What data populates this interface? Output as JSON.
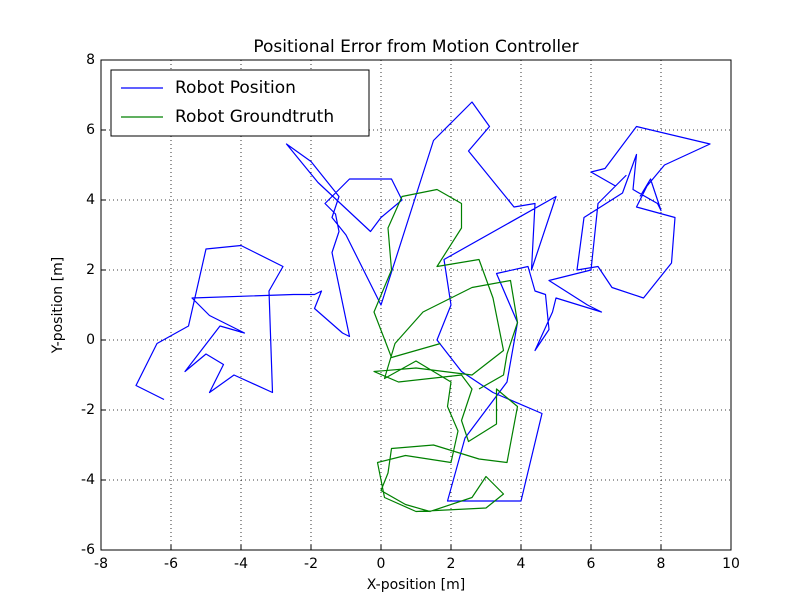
{
  "chart_data": {
    "type": "line",
    "title": "Positional Error from Motion Controller",
    "x_label": "X-position [m]",
    "y_label": "Y-position [m]",
    "xlim": [
      -8,
      10
    ],
    "xticks": [
      -8,
      -6,
      -4,
      -2,
      0,
      2,
      4,
      6,
      8,
      10
    ],
    "ylim": [
      -6,
      8
    ],
    "yticks": [
      -6,
      -4,
      -2,
      0,
      2,
      4,
      6,
      8
    ],
    "grid": true,
    "legend": "upper left",
    "series": [
      {
        "name": "Robot Position",
        "color": "#0000ff",
        "x": [
          -6.2,
          -7.0,
          -6.4,
          -5.5,
          -5.0,
          -4.0,
          -2.8,
          -3.2,
          -3.1,
          -4.2,
          -4.9,
          -4.5,
          -5.0,
          -5.6,
          -4.6,
          -3.9,
          -4.9,
          -5.4,
          -2.5,
          -1.9,
          -1.7,
          -1.9,
          -1.1,
          -0.9,
          -1.4,
          -1.2,
          -1.3,
          -1.6,
          -1.4,
          -0.9,
          0.3,
          0.6,
          0.0,
          -0.3,
          -1.8,
          -2.7,
          -2.0,
          -1.2,
          -1.4,
          -1.0,
          0.0,
          1.5,
          2.6,
          3.1,
          2.5,
          3.8,
          4.4,
          4.3,
          5.0,
          1.8,
          2.0,
          1.6,
          2.3,
          3.2,
          4.6,
          4.0,
          1.9,
          2.4,
          3.6,
          3.9,
          3.3,
          4.2,
          4.4,
          4.7,
          4.8,
          4.4,
          4.9,
          5.0,
          6.3,
          5.9,
          4.8,
          6.0,
          6.2,
          7.0,
          6.7,
          6.0,
          6.4,
          7.3,
          9.4,
          8.1,
          7.6,
          7.3,
          8.4,
          8.3,
          7.5,
          6.6,
          6.2,
          5.6,
          5.8,
          6.9,
          7.3,
          7.2,
          7.9,
          8.0,
          7.7,
          7.4
        ],
        "values": [
          -1.7,
          -1.3,
          -0.1,
          0.4,
          2.6,
          2.7,
          2.1,
          1.4,
          -1.5,
          -1.0,
          -1.5,
          -0.7,
          -0.4,
          -0.9,
          0.4,
          0.2,
          0.7,
          1.2,
          1.3,
          1.3,
          1.4,
          0.9,
          0.2,
          0.1,
          2.5,
          3.1,
          3.6,
          3.9,
          4.1,
          4.6,
          4.6,
          4.0,
          3.5,
          3.1,
          4.5,
          5.6,
          5.1,
          4.1,
          3.5,
          3.0,
          1.0,
          5.7,
          6.8,
          6.1,
          5.4,
          3.8,
          3.9,
          2.0,
          4.1,
          2.3,
          1.0,
          0.0,
          -0.9,
          -1.5,
          -2.1,
          -4.6,
          -4.6,
          -2.8,
          -1.2,
          0.5,
          1.9,
          2.1,
          1.4,
          1.3,
          0.3,
          -0.3,
          0.8,
          1.2,
          0.8,
          1.0,
          1.7,
          2.0,
          3.9,
          4.7,
          4.4,
          4.8,
          4.9,
          6.1,
          5.6,
          5.0,
          4.4,
          3.8,
          3.5,
          2.2,
          1.2,
          1.5,
          2.1,
          2.0,
          3.5,
          4.2,
          5.3,
          4.3,
          3.9,
          3.7,
          4.6,
          4.1
        ]
      },
      {
        "name": "Robot Groundtruth",
        "color": "#008000",
        "x": [
          1.7,
          0.3,
          -0.2,
          0.3,
          0.2,
          0.6,
          1.6,
          2.3,
          2.3,
          1.6,
          2.8,
          3.2,
          3.5,
          2.6,
          1.0,
          -0.2,
          0.5,
          2.3,
          2.6,
          2.3,
          2.5,
          3.3,
          3.3,
          3.9,
          3.6,
          2.8,
          1.5,
          0.3,
          0.2,
          0.0,
          0.7,
          1.4,
          2.6,
          3.0,
          3.5,
          3.0,
          1.0,
          0.1,
          -0.1,
          0.7,
          2.0,
          2.2,
          1.9,
          2.0,
          1.0,
          0.1,
          0.4,
          1.2,
          2.6,
          3.7,
          3.9,
          3.6,
          3.5,
          2.8
        ],
        "values": [
          -0.1,
          -0.5,
          0.8,
          2.0,
          3.2,
          4.1,
          4.3,
          3.9,
          3.2,
          2.1,
          2.3,
          1.2,
          -0.3,
          -1.0,
          -0.8,
          -0.9,
          -1.2,
          -1.0,
          -1.4,
          -2.3,
          -2.9,
          -2.4,
          -1.4,
          -1.9,
          -3.5,
          -3.4,
          -3.0,
          -3.1,
          -3.8,
          -4.3,
          -4.7,
          -4.9,
          -4.5,
          -3.9,
          -4.4,
          -4.8,
          -4.9,
          -4.5,
          -3.5,
          -3.3,
          -3.5,
          -2.6,
          -1.9,
          -1.2,
          -0.6,
          -1.1,
          -0.1,
          0.8,
          1.5,
          1.7,
          0.5,
          -0.4,
          -1.0,
          -1.4
        ]
      }
    ]
  }
}
